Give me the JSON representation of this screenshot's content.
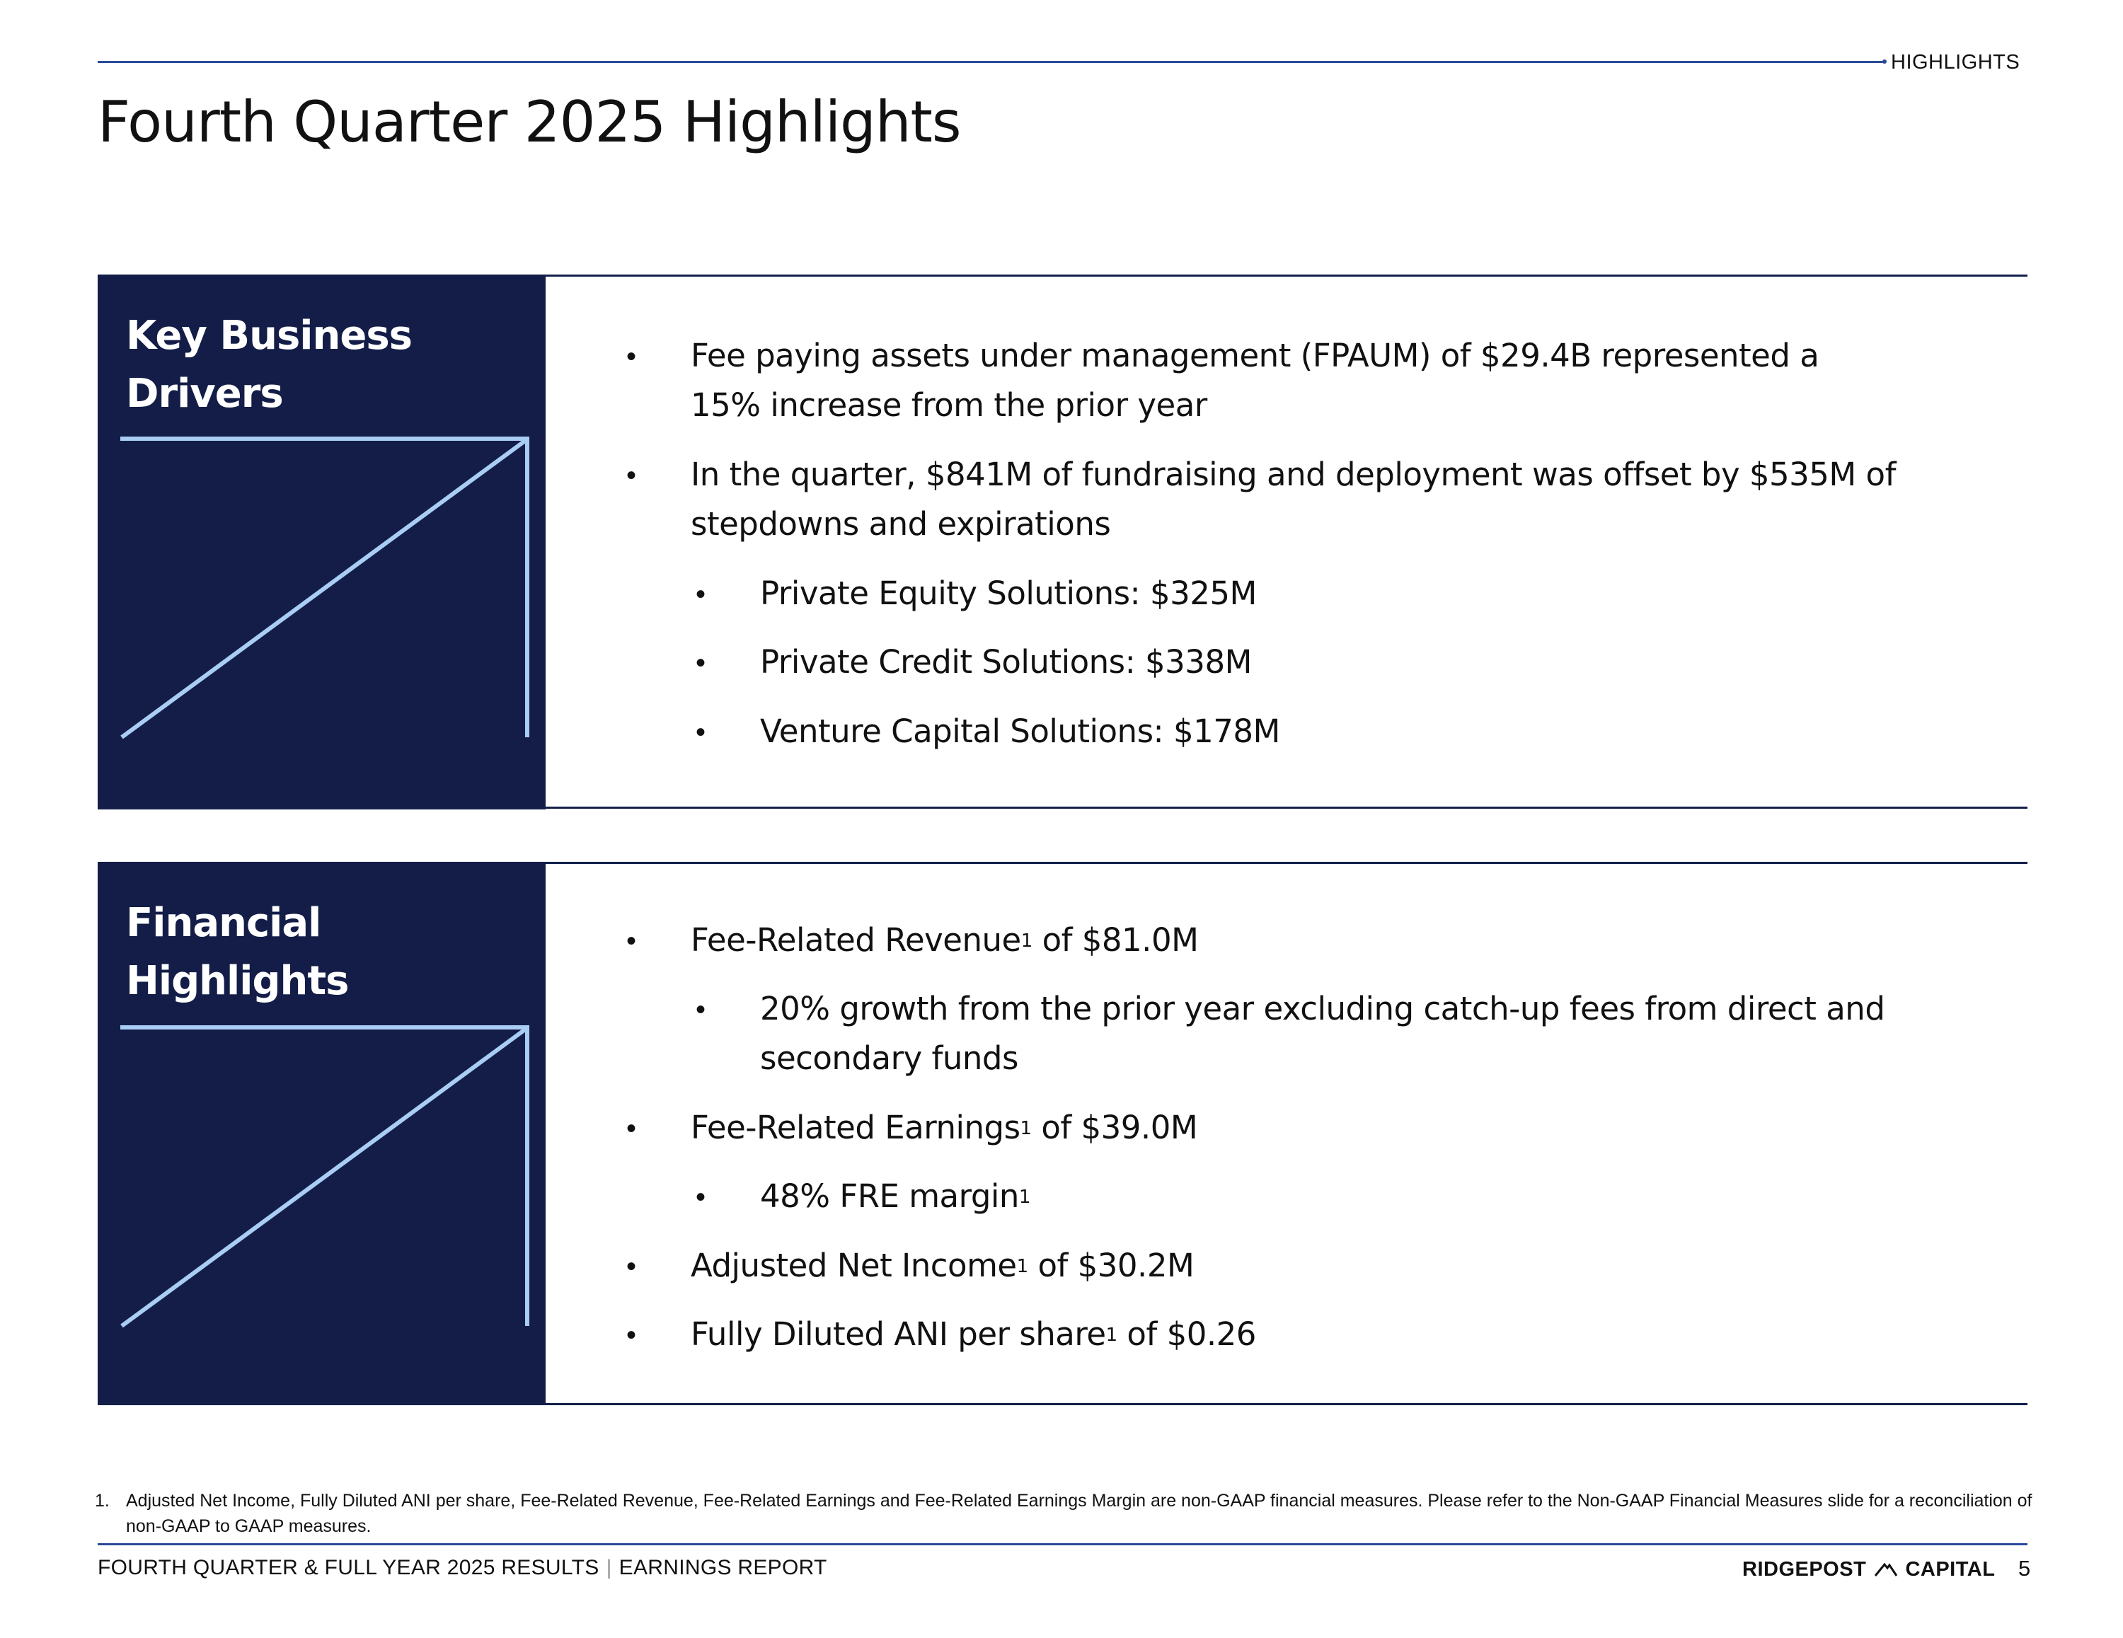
{
  "header": {
    "section_label": "HIGHLIGHTS",
    "title": "Fourth Quarter 2025 Highlights"
  },
  "panels": [
    {
      "title_line1": "Key Business",
      "title_line2": "Drivers",
      "bullets": {
        "b1_line1": "Fee paying assets under management (FPAUM) of $29.4B represented a",
        "b1_line2": "15% increase from the prior year",
        "b2_line1": "In the quarter, $841M of fundraising and deployment was offset by $535M of",
        "b2_line2": "stepdowns and expirations",
        "s1": "Private Equity Solutions: $325M",
        "s2": "Private Credit Solutions: $338M",
        "s3": "Venture Capital Solutions: $178M"
      }
    },
    {
      "title_line1": "Financial",
      "title_line2": "Highlights",
      "bullets": {
        "fr_pre": "Fee-Related Revenue",
        "fr_post": " of $81.0M",
        "growth_line1": "20% growth from the prior year excluding catch-up fees from direct and",
        "growth_line2": "secondary funds",
        "fe_pre": "Fee-Related Earnings",
        "fe_post": " of $39.0M",
        "margin_pre": "48% FRE margin",
        "ani_pre": "Adjusted Net Income",
        "ani_post": " of $30.2M",
        "fd_pre": "Fully Diluted ANI per share",
        "fd_post": " of $0.26",
        "footnote_ref": "1"
      }
    }
  ],
  "bullet_char": "•",
  "footnote": {
    "number": "1.",
    "text": "Adjusted Net Income, Fully Diluted ANI per share, Fee-Related Revenue, Fee-Related Earnings and Fee-Related Earnings Margin are non-GAAP financial measures. Please refer to the Non-GAAP Financial Measures slide for a reconciliation of non-GAAP to GAAP measures."
  },
  "footer": {
    "left_text": "FOURTH QUARTER & FULL YEAR 2025 RESULTS",
    "separator": "|",
    "right_text": "EARNINGS REPORT",
    "brand_left": "RIDGEPOST",
    "brand_right": "CAPITAL",
    "page_number": "5"
  },
  "colors": {
    "panel_dark": "#131d47",
    "accent_line": "#a9cdf5",
    "rule_blue": "#2a4a9a"
  }
}
